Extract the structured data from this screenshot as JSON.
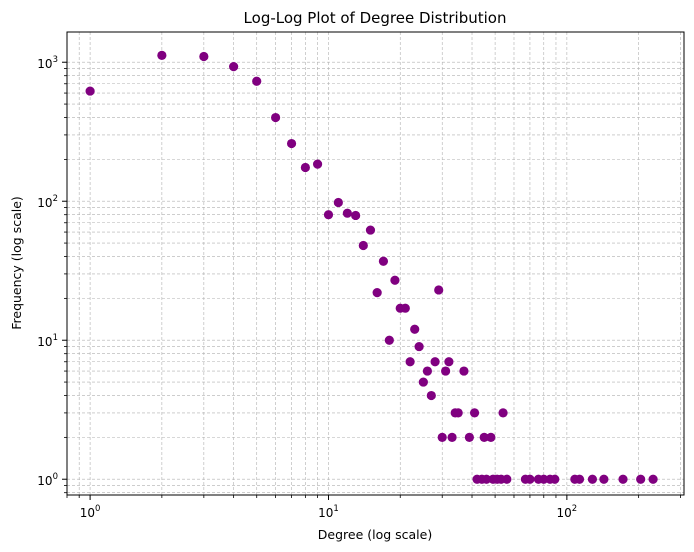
{
  "chart_data": {
    "type": "scatter",
    "title": "Log-Log Plot of Degree Distribution",
    "xlabel": "Degree (log scale)",
    "ylabel": "Frequency (log scale)",
    "xscale": "log",
    "yscale": "log",
    "xlim": [
      0.8,
      310
    ],
    "ylim": [
      0.77,
      1650
    ],
    "grid": true,
    "marker_color": "#800080",
    "grid_color": "#b0b0b0",
    "xticks": [
      {
        "value": 1,
        "base": "10",
        "exp": "0"
      },
      {
        "value": 10,
        "base": "10",
        "exp": "1"
      },
      {
        "value": 100,
        "base": "10",
        "exp": "2"
      }
    ],
    "yticks": [
      {
        "value": 1,
        "base": "10",
        "exp": "0"
      },
      {
        "value": 10,
        "base": "10",
        "exp": "1"
      },
      {
        "value": 100,
        "base": "10",
        "exp": "2"
      },
      {
        "value": 1000,
        "base": "10",
        "exp": "3"
      }
    ],
    "points": [
      [
        1,
        620
      ],
      [
        2,
        1120
      ],
      [
        3,
        1100
      ],
      [
        4,
        930
      ],
      [
        5,
        730
      ],
      [
        6,
        400
      ],
      [
        7,
        260
      ],
      [
        8,
        175
      ],
      [
        9,
        185
      ],
      [
        10,
        80
      ],
      [
        11,
        98
      ],
      [
        12,
        82
      ],
      [
        13,
        79
      ],
      [
        14,
        48
      ],
      [
        15,
        62
      ],
      [
        16,
        22
      ],
      [
        17,
        37
      ],
      [
        18,
        10
      ],
      [
        19,
        27
      ],
      [
        20,
        17
      ],
      [
        21,
        17
      ],
      [
        22,
        7
      ],
      [
        23,
        12
      ],
      [
        24,
        9
      ],
      [
        25,
        5
      ],
      [
        26,
        6
      ],
      [
        27,
        4
      ],
      [
        28,
        7
      ],
      [
        29,
        23
      ],
      [
        30,
        2
      ],
      [
        31,
        6
      ],
      [
        32,
        7
      ],
      [
        33,
        2
      ],
      [
        34,
        3
      ],
      [
        35,
        3
      ],
      [
        37,
        6
      ],
      [
        39,
        2
      ],
      [
        41,
        3
      ],
      [
        42,
        1
      ],
      [
        44,
        1
      ],
      [
        45,
        2
      ],
      [
        46,
        1
      ],
      [
        48,
        2
      ],
      [
        49,
        1
      ],
      [
        51,
        1
      ],
      [
        53,
        1
      ],
      [
        54,
        3
      ],
      [
        56,
        1
      ],
      [
        67,
        1
      ],
      [
        70,
        1
      ],
      [
        76,
        1
      ],
      [
        80,
        1
      ],
      [
        85,
        1
      ],
      [
        89,
        1
      ],
      [
        108,
        1
      ],
      [
        113,
        1
      ],
      [
        128,
        1
      ],
      [
        143,
        1
      ],
      [
        172,
        1
      ],
      [
        204,
        1
      ],
      [
        230,
        1
      ]
    ]
  }
}
